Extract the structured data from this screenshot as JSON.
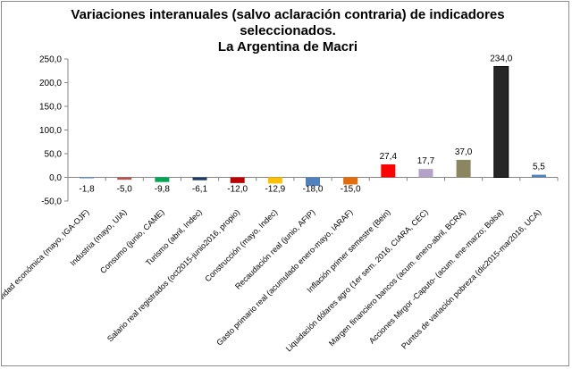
{
  "chart_data": {
    "type": "bar",
    "title_lines": [
      "Variaciones interanuales (salvo aclaración contraria) de indicadores",
      "seleccionados.",
      "La Argentina de Macri"
    ],
    "categories": [
      "Actividad económica (mayo, IGA-OJF)",
      "Industria (mayo, UIA)",
      "Consumo (junio, CAME)",
      "Turismo (abril, Indec)",
      "Salario real registrados (oct2015-junio2016, propio)",
      "Construcción (mayo, Indec)",
      "Recaudación real (junio, AFIP)",
      "Gasto primario real (acumulado enero-mayo, IARAF)",
      "Inflación primer semestre (Bein)",
      "Liquidación dólares agro (1er sem. 2016, CIARA, CEC)",
      "Margen financiero bancos (acum. enero-abril, BCRA)",
      "Acciones Mirgor -Caputo- (acum. ene-marzo; Bolsa)",
      "Puntos de variación pobreza (dic2015-mar2016, UCA)"
    ],
    "values": [
      -1.8,
      -5.0,
      -9.8,
      -6.1,
      -12.0,
      -12.9,
      -18.0,
      -15.0,
      27.4,
      17.7,
      37.0,
      234.0,
      5.5
    ],
    "value_labels": [
      "-1,8",
      "-5,0",
      "-9,8",
      "-6,1",
      "-12,0",
      "-12,9",
      "-18,0",
      "-15,0",
      "27,4",
      "17,7",
      "37,0",
      "234,0",
      "5,5"
    ],
    "colors": [
      "#4f81bd",
      "#c0504d",
      "#00a651",
      "#1f3864",
      "#c00000",
      "#ffc000",
      "#4f81bd",
      "#e46c0a",
      "#ff0000",
      "#b3a2c7",
      "#8c8660",
      "#262626",
      "#4f81bd"
    ],
    "yticks": [
      "-50,0",
      "0,0",
      "50,0",
      "100,0",
      "150,0",
      "200,0",
      "250,0"
    ],
    "ylim": [
      -50,
      250
    ],
    "grid": false,
    "legend": "none"
  }
}
